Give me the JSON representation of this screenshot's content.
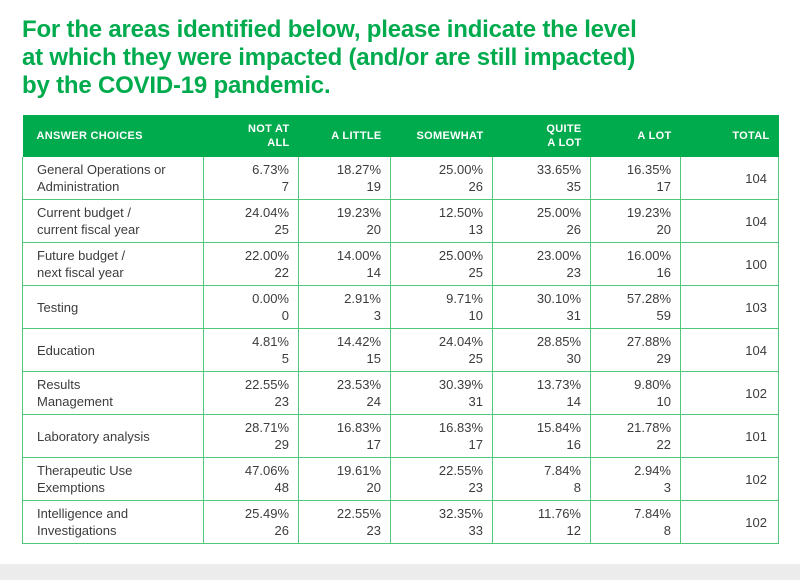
{
  "title": {
    "lines": [
      "For the areas identified below, please indicate the level",
      "at which they were impacted (and/or are still impacted)",
      "by the COVID-19 pandemic."
    ]
  },
  "colors": {
    "accent_green": "#00ab4e",
    "grid_green": "#4fc87a",
    "header_text": "#ffffff",
    "body_text": "#3c3c3c",
    "footer_gray": "#ececec"
  },
  "table": {
    "columns": [
      {
        "key": "answer-choices",
        "lines": [
          "ANSWER CHOICES"
        ]
      },
      {
        "key": "not-at-all",
        "lines": [
          "NOT AT",
          "ALL"
        ]
      },
      {
        "key": "a-little",
        "lines": [
          "A LITTLE"
        ]
      },
      {
        "key": "somewhat",
        "lines": [
          "SOMEWHAT"
        ]
      },
      {
        "key": "quite-a-lot",
        "lines": [
          "QUITE",
          "A LOT"
        ]
      },
      {
        "key": "a-lot",
        "lines": [
          "A LOT"
        ]
      },
      {
        "key": "total",
        "lines": [
          "TOTAL"
        ]
      }
    ],
    "rows": [
      {
        "label_lines": [
          "General Operations or",
          "Administration"
        ],
        "cells": [
          [
            "6.73%",
            "7"
          ],
          [
            "18.27%",
            "19"
          ],
          [
            "25.00%",
            "26"
          ],
          [
            "33.65%",
            "35"
          ],
          [
            "16.35%",
            "17"
          ]
        ],
        "total": "104"
      },
      {
        "label_lines": [
          "Current budget /",
          "current fiscal year"
        ],
        "cells": [
          [
            "24.04%",
            "25"
          ],
          [
            "19.23%",
            "20"
          ],
          [
            "12.50%",
            "13"
          ],
          [
            "25.00%",
            "26"
          ],
          [
            "19.23%",
            "20"
          ]
        ],
        "total": "104"
      },
      {
        "label_lines": [
          "Future budget /",
          "next fiscal year"
        ],
        "cells": [
          [
            "22.00%",
            "22"
          ],
          [
            "14.00%",
            "14"
          ],
          [
            "25.00%",
            "25"
          ],
          [
            "23.00%",
            "23"
          ],
          [
            "16.00%",
            "16"
          ]
        ],
        "total": "100"
      },
      {
        "label_lines": [
          "Testing"
        ],
        "cells": [
          [
            "0.00%",
            "0"
          ],
          [
            "2.91%",
            "3"
          ],
          [
            "9.71%",
            "10"
          ],
          [
            "30.10%",
            "31"
          ],
          [
            "57.28%",
            "59"
          ]
        ],
        "total": "103"
      },
      {
        "label_lines": [
          "Education"
        ],
        "cells": [
          [
            "4.81%",
            "5"
          ],
          [
            "14.42%",
            "15"
          ],
          [
            "24.04%",
            "25"
          ],
          [
            "28.85%",
            "30"
          ],
          [
            "27.88%",
            "29"
          ]
        ],
        "total": "104"
      },
      {
        "label_lines": [
          "Results",
          "Management"
        ],
        "cells": [
          [
            "22.55%",
            "23"
          ],
          [
            "23.53%",
            "24"
          ],
          [
            "30.39%",
            "31"
          ],
          [
            "13.73%",
            "14"
          ],
          [
            "9.80%",
            "10"
          ]
        ],
        "total": "102"
      },
      {
        "label_lines": [
          "Laboratory analysis"
        ],
        "cells": [
          [
            "28.71%",
            "29"
          ],
          [
            "16.83%",
            "17"
          ],
          [
            "16.83%",
            "17"
          ],
          [
            "15.84%",
            "16"
          ],
          [
            "21.78%",
            "22"
          ]
        ],
        "total": "101"
      },
      {
        "label_lines": [
          "Therapeutic Use",
          "Exemptions"
        ],
        "cells": [
          [
            "47.06%",
            "48"
          ],
          [
            "19.61%",
            "20"
          ],
          [
            "22.55%",
            "23"
          ],
          [
            "7.84%",
            "8"
          ],
          [
            "2.94%",
            "3"
          ]
        ],
        "total": "102"
      },
      {
        "label_lines": [
          "Intelligence and",
          "Investigations"
        ],
        "cells": [
          [
            "25.49%",
            "26"
          ],
          [
            "22.55%",
            "23"
          ],
          [
            "32.35%",
            "33"
          ],
          [
            "11.76%",
            "12"
          ],
          [
            "7.84%",
            "8"
          ]
        ],
        "total": "102"
      }
    ]
  },
  "chart_data": {
    "type": "table",
    "title": "For the areas identified below, please indicate the level at which they were impacted (and/or are still impacted) by the COVID-19 pandemic.",
    "categories": [
      "General Operations or Administration",
      "Current budget / current fiscal year",
      "Future budget / next fiscal year",
      "Testing",
      "Education",
      "Results Management",
      "Laboratory analysis",
      "Therapeutic Use Exemptions",
      "Intelligence and Investigations"
    ],
    "columns": [
      "NOT AT ALL",
      "A LITTLE",
      "SOMEWHAT",
      "QUITE A LOT",
      "A LOT",
      "TOTAL"
    ],
    "series": [
      {
        "name": "NOT AT ALL",
        "percent": [
          6.73,
          24.04,
          22.0,
          0.0,
          4.81,
          22.55,
          28.71,
          47.06,
          25.49
        ],
        "count": [
          7,
          25,
          22,
          0,
          5,
          23,
          29,
          48,
          26
        ]
      },
      {
        "name": "A LITTLE",
        "percent": [
          18.27,
          19.23,
          14.0,
          2.91,
          14.42,
          23.53,
          16.83,
          19.61,
          22.55
        ],
        "count": [
          19,
          20,
          14,
          3,
          15,
          24,
          17,
          20,
          23
        ]
      },
      {
        "name": "SOMEWHAT",
        "percent": [
          25.0,
          12.5,
          25.0,
          9.71,
          24.04,
          30.39,
          16.83,
          22.55,
          32.35
        ],
        "count": [
          26,
          13,
          25,
          10,
          25,
          31,
          17,
          23,
          33
        ]
      },
      {
        "name": "QUITE A LOT",
        "percent": [
          33.65,
          25.0,
          23.0,
          30.1,
          28.85,
          13.73,
          15.84,
          7.84,
          11.76
        ],
        "count": [
          35,
          26,
          23,
          31,
          30,
          14,
          16,
          8,
          12
        ]
      },
      {
        "name": "A LOT",
        "percent": [
          16.35,
          19.23,
          16.0,
          57.28,
          27.88,
          9.8,
          21.78,
          2.94,
          7.84
        ],
        "count": [
          17,
          20,
          16,
          59,
          29,
          10,
          22,
          3,
          8
        ]
      }
    ],
    "totals": [
      104,
      104,
      100,
      103,
      104,
      102,
      101,
      102,
      102
    ]
  }
}
